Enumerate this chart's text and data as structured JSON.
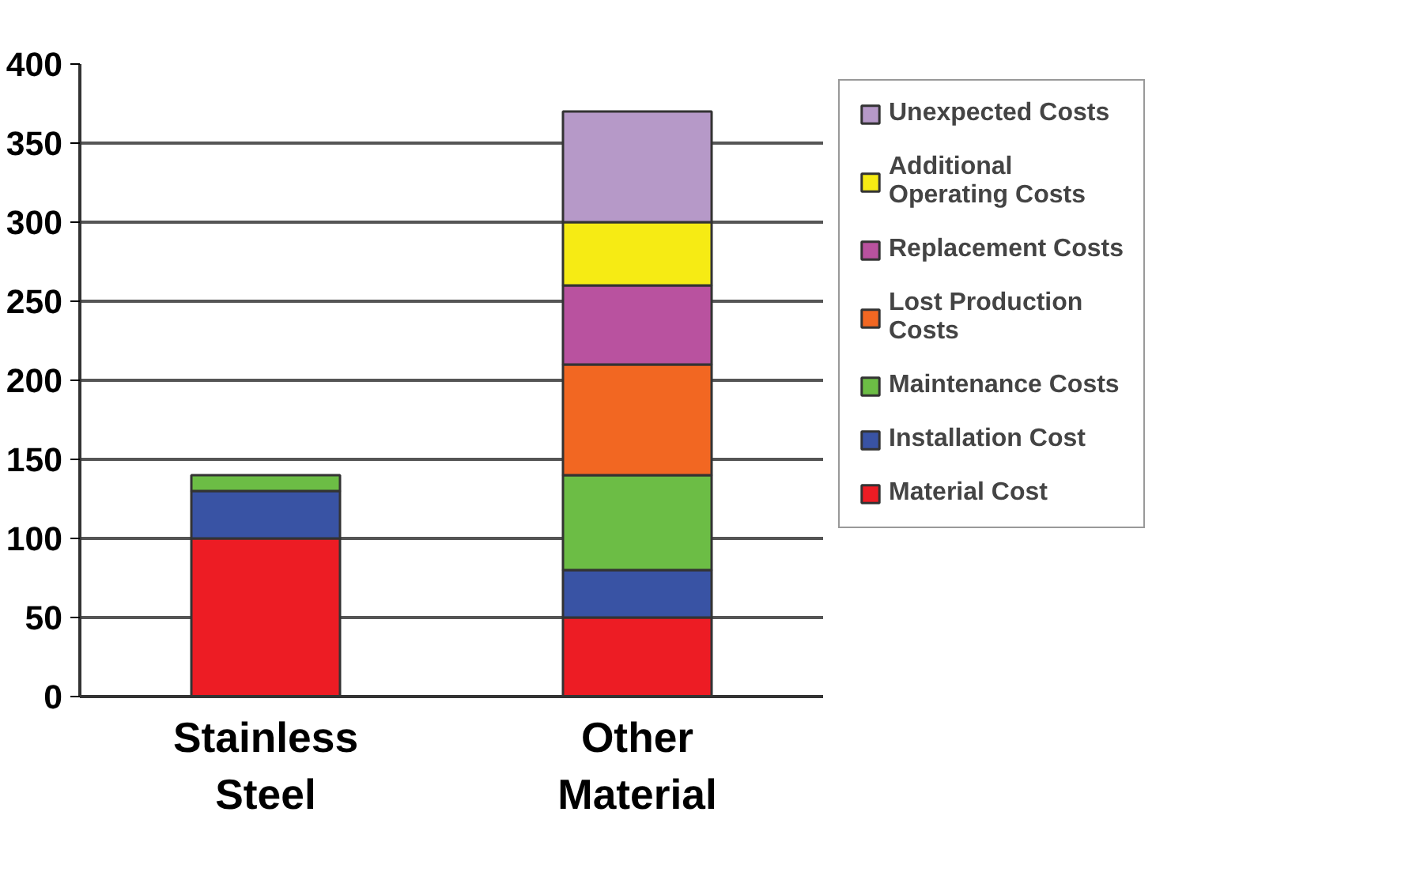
{
  "chart_data": {
    "type": "bar",
    "stacked": true,
    "categories": [
      "Stainless Steel",
      "Other Material"
    ],
    "series": [
      {
        "name": "Material Cost",
        "color": "#ed1c24",
        "values": [
          100,
          50
        ]
      },
      {
        "name": "Installation Cost",
        "color": "#3953a4",
        "values": [
          30,
          30
        ]
      },
      {
        "name": "Maintenance Costs",
        "color": "#6cbd45",
        "values": [
          10,
          60
        ]
      },
      {
        "name": "Lost Production Costs",
        "color": "#f26722",
        "values": [
          0,
          70
        ]
      },
      {
        "name": "Replacement Costs",
        "color": "#b9529f",
        "values": [
          0,
          50
        ]
      },
      {
        "name": "Additional Operating Costs",
        "color": "#f6eb14",
        "values": [
          0,
          40
        ]
      },
      {
        "name": "Unexpected Costs",
        "color": "#b699c8",
        "values": [
          0,
          70
        ]
      }
    ],
    "ylim": [
      0,
      400
    ],
    "yticks": [
      0,
      50,
      100,
      150,
      200,
      250,
      300,
      350,
      400
    ],
    "grid": "y",
    "legend": "right"
  }
}
